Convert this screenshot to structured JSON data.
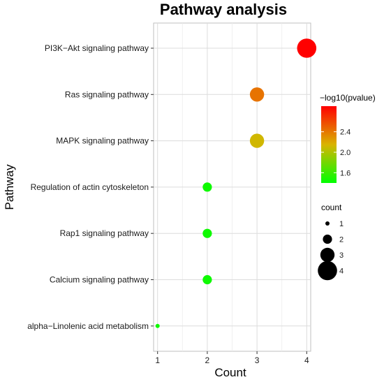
{
  "chart_data": {
    "type": "scatter",
    "title": "Pathway analysis",
    "xlabel": "Count",
    "ylabel": "Pathway",
    "xlim": [
      0.92,
      4.08
    ],
    "xticks": [
      1,
      2,
      3,
      4
    ],
    "grid": true,
    "categories": [
      "PI3K−Akt signaling pathway",
      "Ras signaling pathway",
      "MAPK signaling pathway",
      "Regulation of actin cytoskeleton",
      "Rap1 signaling pathway",
      "Calcium signaling pathway",
      "alpha−Linolenic acid metabolism"
    ],
    "points": [
      {
        "pathway": "PI3K−Akt signaling pathway",
        "count": 4,
        "neg_log10_pvalue": 2.9
      },
      {
        "pathway": "Ras signaling pathway",
        "count": 3,
        "neg_log10_pvalue": 2.42
      },
      {
        "pathway": "MAPK signaling pathway",
        "count": 3,
        "neg_log10_pvalue": 2.12
      },
      {
        "pathway": "Regulation of actin cytoskeleton",
        "count": 2,
        "neg_log10_pvalue": 1.45
      },
      {
        "pathway": "Rap1 signaling pathway",
        "count": 2,
        "neg_log10_pvalue": 1.45
      },
      {
        "pathway": "Calcium signaling pathway",
        "count": 2,
        "neg_log10_pvalue": 1.45
      },
      {
        "pathway": "alpha−Linolenic acid metabolism",
        "count": 1,
        "neg_log10_pvalue": 1.45
      }
    ],
    "color_legend": {
      "title": "−log10(pvalue)",
      "range": [
        1.4,
        2.9
      ],
      "ticks": [
        1.6,
        2.0,
        2.4
      ],
      "tick_labels": [
        "1.6",
        "2.0",
        "2.4"
      ],
      "colors": [
        "#00ff00",
        "#ff0000"
      ]
    },
    "size_legend": {
      "title": "count",
      "values": [
        1,
        2,
        3,
        4
      ],
      "labels": [
        "1",
        "2",
        "3",
        "4"
      ]
    },
    "legend_placement": "right"
  }
}
